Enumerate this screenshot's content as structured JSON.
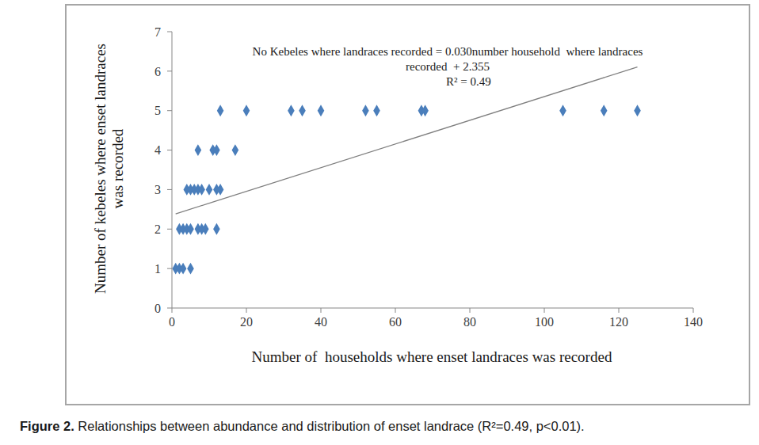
{
  "chart_data": {
    "type": "scatter",
    "xlabel": "Number of  households where enset landraces was recorded",
    "ylabel": "Number of kebeles where enset landraces was recorded",
    "annotation": [
      "No Kebeles where landraces recorded = 0.030number household  where landraces",
      "recorded  + 2.355",
      "R² = 0.49"
    ],
    "caption_label": "Figure 2.",
    "caption": "Relationships between abundance and distribution of enset landrace (R²=0.49, p<0.01).",
    "x": [
      1,
      2,
      3,
      5,
      2,
      3,
      4,
      5,
      7,
      8,
      9,
      12,
      4,
      5,
      6,
      7,
      8,
      10,
      12,
      13,
      7,
      11,
      12,
      17,
      13,
      20,
      32,
      35,
      40,
      52,
      55,
      67,
      68,
      105,
      116,
      125
    ],
    "values": [
      1,
      1,
      1,
      1,
      2,
      2,
      2,
      2,
      2,
      2,
      2,
      2,
      3,
      3,
      3,
      3,
      3,
      3,
      3,
      3,
      4,
      4,
      4,
      4,
      5,
      5,
      5,
      5,
      5,
      5,
      5,
      5,
      5,
      5,
      5,
      5
    ],
    "color": "#4a7ebb",
    "marker": "diamond",
    "trendline": {
      "slope": 0.03,
      "intercept": 2.355,
      "x": [
        1,
        125
      ],
      "color": "#7f7f7f"
    },
    "xlim": [
      0,
      140
    ],
    "xticks": [
      0,
      20,
      40,
      60,
      80,
      100,
      120,
      140
    ],
    "ylim": [
      0,
      7
    ],
    "yticks": [
      0,
      1,
      2,
      3,
      4,
      5,
      6,
      7
    ],
    "grid": false
  }
}
